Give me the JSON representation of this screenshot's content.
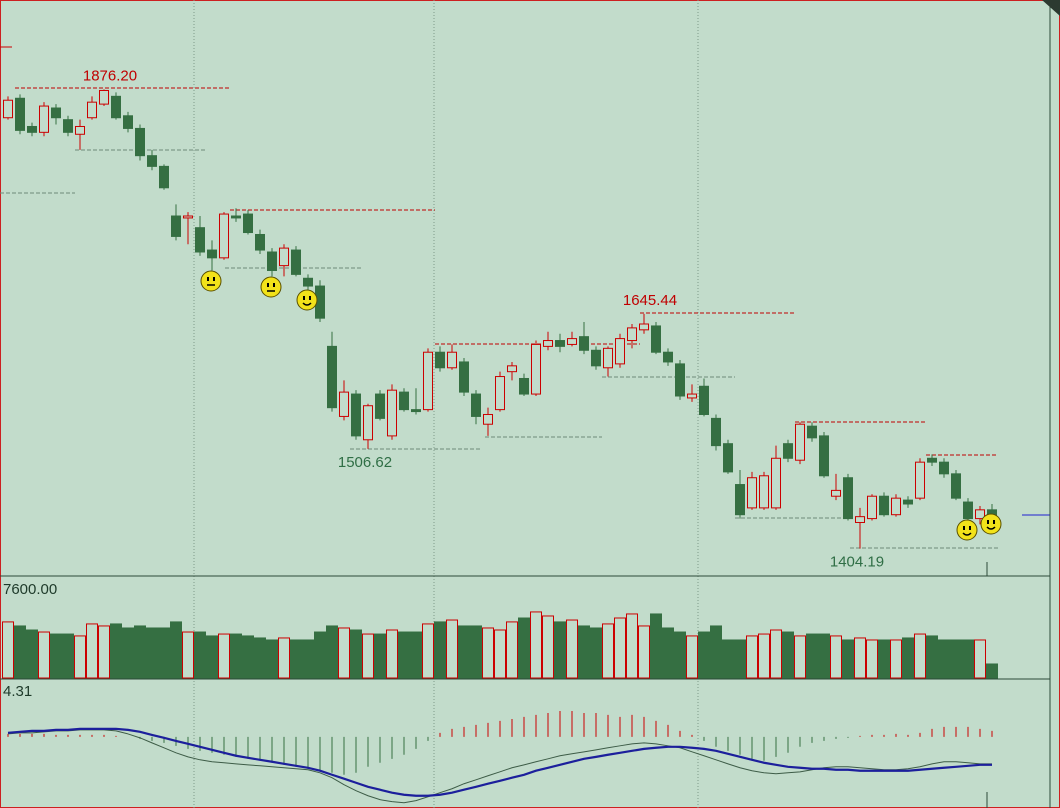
{
  "chart_data": [
    {
      "type": "candlestick",
      "open": [
        1847,
        1867,
        1838,
        1832,
        1857,
        1845,
        1830,
        1847,
        1861,
        1869,
        1849,
        1836,
        1808,
        1797,
        1746,
        1744,
        1734,
        1711,
        1703,
        1746,
        1748,
        1727,
        1709,
        1695,
        1711,
        1682,
        1674,
        1612,
        1540,
        1563,
        1516,
        1563,
        1520,
        1565,
        1547,
        1547,
        1606,
        1590,
        1596,
        1563,
        1532,
        1547,
        1586,
        1579,
        1563,
        1612,
        1618,
        1614,
        1622,
        1608,
        1590,
        1594,
        1618,
        1629,
        1633,
        1606,
        1594,
        1559,
        1571,
        1538,
        1512,
        1470,
        1446,
        1446,
        1446,
        1512,
        1495,
        1530,
        1520,
        1458,
        1477,
        1431,
        1435,
        1458,
        1439,
        1454,
        1456,
        1497,
        1493,
        1481,
        1452,
        1435,
        1444
      ],
      "high": [
        1869,
        1871,
        1842,
        1863,
        1861,
        1849,
        1845,
        1869,
        1876.2,
        1873,
        1853,
        1840,
        1814,
        1799,
        1758,
        1750,
        1746,
        1721,
        1750,
        1754,
        1752,
        1732,
        1713,
        1717,
        1715,
        1686,
        1680,
        1627,
        1577,
        1567,
        1553,
        1567,
        1573,
        1569,
        1569,
        1610,
        1612,
        1614,
        1600,
        1567,
        1549,
        1586,
        1596,
        1584,
        1618,
        1627,
        1625,
        1627,
        1637,
        1612,
        1612,
        1625,
        1635,
        1645.44,
        1637,
        1610,
        1598,
        1573,
        1579,
        1542,
        1516,
        1485,
        1483,
        1483,
        1510,
        1516,
        1534,
        1534,
        1524,
        1481,
        1481,
        1446,
        1460,
        1462,
        1460,
        1458,
        1497,
        1501,
        1497,
        1485,
        1456,
        1448,
        1450
      ],
      "low": [
        1845,
        1830,
        1828,
        1828,
        1840,
        1828,
        1814,
        1845,
        1859,
        1845,
        1832,
        1803,
        1793,
        1773,
        1721,
        1717,
        1705,
        1690,
        1701,
        1740,
        1727,
        1707,
        1684,
        1684,
        1684,
        1670,
        1637,
        1545,
        1536,
        1516,
        1506.62,
        1536,
        1516,
        1545,
        1542,
        1545,
        1586,
        1588,
        1561,
        1532,
        1520,
        1545,
        1577,
        1561,
        1561,
        1608,
        1606,
        1612,
        1604,
        1588,
        1581,
        1590,
        1610,
        1625,
        1604,
        1592,
        1557,
        1555,
        1540,
        1505,
        1481,
        1435,
        1444,
        1444,
        1444,
        1493,
        1491,
        1514,
        1477,
        1454,
        1433,
        1404.19,
        1433,
        1437,
        1437,
        1446,
        1454,
        1489,
        1477,
        1454,
        1431,
        1429,
        1423
      ],
      "close": [
        1865,
        1834,
        1832,
        1859,
        1847,
        1832,
        1838,
        1863,
        1875,
        1847,
        1836,
        1808,
        1797,
        1775,
        1725,
        1746,
        1709,
        1703,
        1748,
        1744,
        1729,
        1711,
        1690,
        1713,
        1686,
        1674,
        1641,
        1549,
        1565,
        1520,
        1551,
        1538,
        1567,
        1547,
        1545,
        1606,
        1590,
        1606,
        1565,
        1540,
        1542,
        1581,
        1592,
        1563,
        1614,
        1618,
        1612,
        1620,
        1608,
        1592,
        1610,
        1620,
        1631,
        1635,
        1606,
        1596,
        1561,
        1563,
        1542,
        1510,
        1483,
        1439,
        1477,
        1479,
        1497,
        1497,
        1532,
        1518,
        1479,
        1464,
        1435,
        1437,
        1458,
        1439,
        1456,
        1450,
        1493,
        1493,
        1481,
        1456,
        1435,
        1444,
        1435
      ],
      "high_labels": [
        null,
        null,
        null,
        null,
        null,
        null,
        null,
        null,
        "1876.20",
        null,
        null,
        null,
        null,
        null,
        null,
        null,
        null,
        null,
        null,
        null,
        null,
        null,
        null,
        null,
        null,
        null,
        null,
        null,
        null,
        null,
        null,
        null,
        null,
        null,
        null,
        null,
        null,
        null,
        null,
        null,
        null,
        null,
        null,
        null,
        null,
        null,
        null,
        null,
        null,
        null,
        null,
        null,
        null,
        "1645.44",
        null,
        null,
        null,
        null,
        null,
        null,
        null,
        null,
        null,
        null,
        null,
        null,
        null,
        null,
        null,
        null,
        null,
        null,
        null,
        null,
        null,
        null,
        null,
        null,
        null,
        null,
        null,
        null,
        null
      ],
      "low_labels": [
        null,
        null,
        null,
        null,
        null,
        null,
        null,
        null,
        null,
        null,
        null,
        null,
        null,
        null,
        null,
        null,
        null,
        null,
        null,
        null,
        null,
        null,
        null,
        null,
        null,
        null,
        null,
        null,
        null,
        null,
        "1506.62",
        null,
        null,
        null,
        null,
        null,
        null,
        null,
        null,
        null,
        null,
        null,
        null,
        null,
        null,
        null,
        null,
        null,
        null,
        null,
        null,
        null,
        null,
        null,
        null,
        null,
        null,
        null,
        null,
        null,
        null,
        null,
        null,
        null,
        null,
        null,
        null,
        null,
        null,
        null,
        null,
        "1404.19",
        null,
        null,
        null,
        null,
        null,
        null,
        null,
        null,
        null,
        null,
        null
      ],
      "up_color": "#cc0000",
      "down_color": "#356f42",
      "high_label_color": "#c00000",
      "low_label_color": "#2f6e45",
      "ylim": [
        1376,
        1968
      ]
    },
    {
      "type": "bar",
      "values": [
        4440,
        4120,
        3800,
        3640,
        3480,
        3480,
        3330,
        4280,
        4120,
        4280,
        3960,
        4120,
        3960,
        3960,
        4440,
        3640,
        3640,
        3330,
        3480,
        3480,
        3330,
        3170,
        3010,
        3170,
        3010,
        3010,
        3640,
        4120,
        3960,
        3800,
        3480,
        3480,
        3800,
        3640,
        3640,
        4280,
        4440,
        4590,
        4120,
        4120,
        3960,
        3800,
        4440,
        4750,
        5230,
        4910,
        4440,
        4590,
        4120,
        3960,
        4280,
        4750,
        5070,
        4120,
        5070,
        3960,
        3640,
        3330,
        3640,
        4120,
        3010,
        3010,
        3330,
        3480,
        3800,
        3640,
        3330,
        3480,
        3480,
        3330,
        3010,
        3170,
        3010,
        3010,
        3010,
        3170,
        3480,
        3330,
        3010,
        3010,
        3010,
        3010,
        1110
      ],
      "ylim": [
        0,
        7600
      ],
      "yticks": [
        {
          "value": 7600,
          "label": "7600.00"
        }
      ]
    },
    {
      "type": "macd",
      "histogram": [
        0.24,
        0.24,
        0.24,
        0.24,
        0.16,
        0.16,
        0.16,
        0.16,
        0.16,
        0.08,
        0,
        -0.16,
        -0.33,
        -0.49,
        -0.73,
        -0.98,
        -1.14,
        -1.3,
        -1.46,
        -1.63,
        -1.79,
        -1.95,
        -2.11,
        -2.28,
        -2.44,
        -2.6,
        -2.76,
        -2.93,
        -3.09,
        -2.93,
        -2.44,
        -2.11,
        -1.79,
        -1.46,
        -0.98,
        -0.33,
        0.33,
        0.65,
        0.81,
        0.98,
        1.14,
        1.3,
        1.46,
        1.63,
        1.79,
        1.95,
        2.11,
        2.11,
        1.95,
        1.95,
        1.79,
        1.63,
        1.79,
        1.63,
        1.3,
        0.98,
        0.49,
        0.16,
        -0.33,
        -0.81,
        -1.14,
        -1.46,
        -1.79,
        -1.95,
        -1.63,
        -1.3,
        -0.81,
        -0.49,
        -0.33,
        -0.16,
        -0.08,
        0.08,
        0.16,
        0.16,
        0.24,
        0.16,
        0.33,
        0.65,
        0.81,
        0.81,
        0.81,
        0.65,
        0.49
      ],
      "series": [
        {
          "color": "#3d5c47",
          "values": [
            0.24,
            0.33,
            0.33,
            0.41,
            0.49,
            0.49,
            0.57,
            0.57,
            0.57,
            0.49,
            0.24,
            -0.08,
            -0.49,
            -0.89,
            -1.3,
            -1.63,
            -1.87,
            -2.03,
            -2.11,
            -2.2,
            -2.28,
            -2.36,
            -2.44,
            -2.52,
            -2.6,
            -2.68,
            -2.93,
            -3.33,
            -3.9,
            -4.39,
            -4.8,
            -5.12,
            -5.28,
            -5.37,
            -5.2,
            -4.88,
            -4.55,
            -4.23,
            -3.82,
            -3.5,
            -3.17,
            -2.85,
            -2.52,
            -2.28,
            -2.03,
            -1.79,
            -1.54,
            -1.38,
            -1.22,
            -1.06,
            -0.89,
            -0.73,
            -0.57,
            -0.49,
            -0.57,
            -0.73,
            -0.89,
            -1.22,
            -1.54,
            -1.87,
            -2.2,
            -2.52,
            -2.76,
            -2.93,
            -3.01,
            -2.93,
            -2.85,
            -2.68,
            -2.52,
            -2.44,
            -2.44,
            -2.52,
            -2.6,
            -2.68,
            -2.68,
            -2.6,
            -2.44,
            -2.2,
            -2.03,
            -2.03,
            -2.11,
            -2.2,
            -2.2
          ]
        },
        {
          "color": "#1c1f9c",
          "values": [
            0.33,
            0.41,
            0.49,
            0.49,
            0.57,
            0.57,
            0.65,
            0.65,
            0.65,
            0.65,
            0.57,
            0.41,
            0.16,
            -0.08,
            -0.33,
            -0.57,
            -0.81,
            -1.06,
            -1.3,
            -1.54,
            -1.71,
            -1.87,
            -2.03,
            -2.2,
            -2.36,
            -2.52,
            -2.76,
            -3.09,
            -3.41,
            -3.74,
            -4.07,
            -4.31,
            -4.55,
            -4.72,
            -4.8,
            -4.8,
            -4.72,
            -4.55,
            -4.31,
            -4.07,
            -3.82,
            -3.58,
            -3.33,
            -3.09,
            -2.76,
            -2.52,
            -2.28,
            -2.03,
            -1.79,
            -1.63,
            -1.46,
            -1.3,
            -1.14,
            -0.98,
            -0.89,
            -0.81,
            -0.81,
            -0.89,
            -0.98,
            -1.14,
            -1.38,
            -1.63,
            -1.87,
            -2.11,
            -2.28,
            -2.44,
            -2.52,
            -2.6,
            -2.6,
            -2.68,
            -2.68,
            -2.76,
            -2.76,
            -2.76,
            -2.76,
            -2.76,
            -2.68,
            -2.6,
            -2.52,
            -2.44,
            -2.36,
            -2.28,
            -2.28
          ]
        }
      ],
      "up_color": "#cc0000",
      "down_color": "#356f42",
      "ylim": [
        -5.8,
        4.31
      ],
      "yticks": [
        4.31
      ]
    }
  ]
}
